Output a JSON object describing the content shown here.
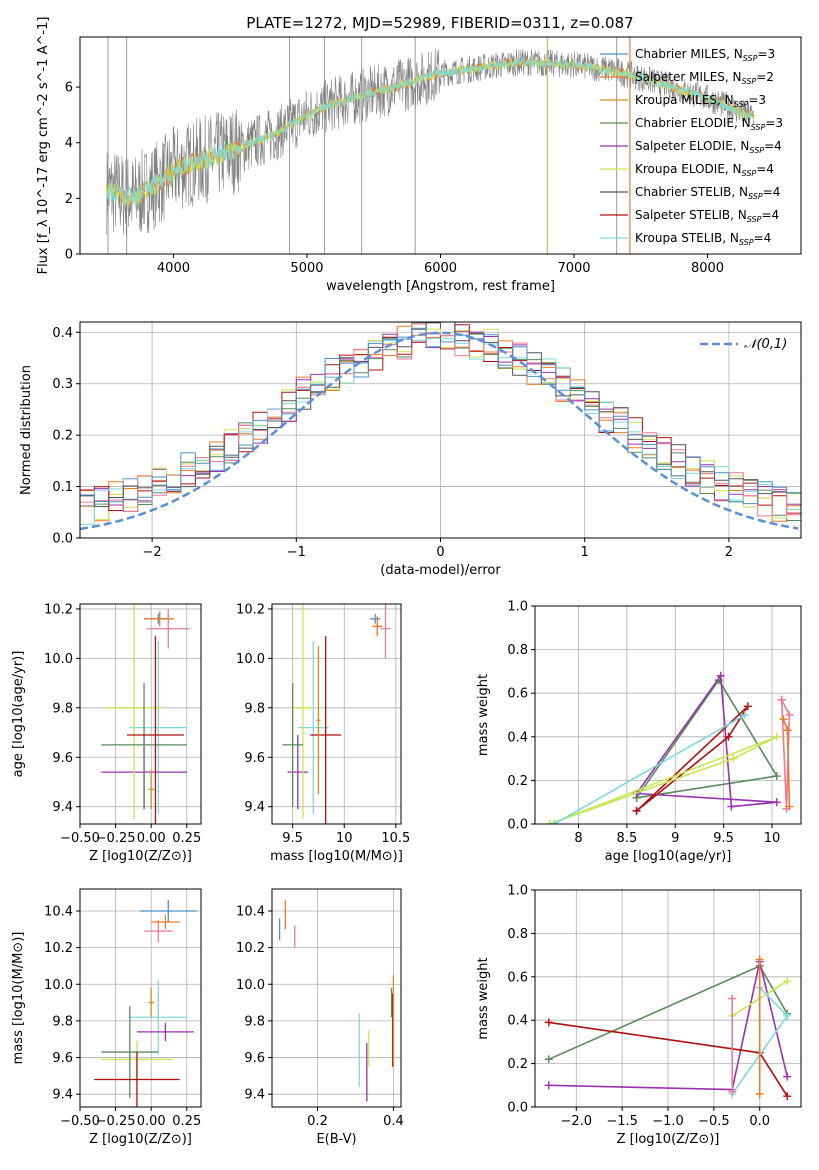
{
  "figure": {
    "title": "PLATE=1272, MJD=52989, FIBERID=0311, z=0.087"
  },
  "colors": {
    "series": [
      "#4a90c8",
      "#f07820",
      "#d98c1a",
      "#5a8a5a",
      "#9b30b0",
      "#c8e650",
      "#555555",
      "#b01010",
      "#80d8e0"
    ],
    "pink": "#f07898",
    "obs": "#808080",
    "normal": "#5b8fd9"
  },
  "legend_spectrum": [
    "Chabrier MILES, N_SSP=3",
    "Salpeter MILES, N_SSP=2",
    "Kroupa MILES, N_SSP=3",
    "Chabrier ELODIE, N_SSP=3",
    "Salpeter ELODIE, N_SSP=4",
    "Kroupa ELODIE, N_SSP=4",
    "Chabrier STELIB, N_SSP=4",
    "Salpeter STELIB, N_SSP=4",
    "Kroupa STELIB, N_SSP=4"
  ],
  "chart_data": [
    {
      "id": "spectrum",
      "type": "line",
      "title": "PLATE=1272, MJD=52989, FIBERID=0311, z=0.087",
      "xlabel": "wavelength [Angstrom, rest frame]",
      "ylabel": "Flux [f_λ 10^-17 erg cm^-2 s^-1 A^-1]",
      "xlim": [
        3300,
        8700
      ],
      "ylim": [
        0,
        7.8
      ],
      "xticks": [
        4000,
        5000,
        6000,
        7000,
        8000
      ],
      "yticks": [
        0,
        2,
        4,
        6
      ],
      "model_curve": {
        "x": [
          3500,
          3700,
          3900,
          4000,
          4100,
          4300,
          4500,
          4800,
          5000,
          5200,
          5500,
          5800,
          6000,
          6300,
          6600,
          7000,
          7300,
          7600,
          8000,
          8300
        ],
        "y": [
          2.3,
          2.0,
          2.6,
          3.0,
          3.2,
          3.5,
          3.8,
          4.4,
          5.0,
          5.4,
          5.8,
          6.2,
          6.5,
          6.7,
          6.9,
          6.8,
          6.6,
          6.2,
          5.6,
          5.0
        ]
      }
    },
    {
      "id": "residuals",
      "type": "line",
      "xlabel": "(data-model)/error",
      "ylabel": "Normed distribution",
      "xlim": [
        -2.5,
        2.5
      ],
      "ylim": [
        0,
        0.42
      ],
      "xticks": [
        -2,
        -1,
        0,
        1,
        2
      ],
      "yticks": [
        0.0,
        0.1,
        0.2,
        0.3,
        0.4
      ],
      "legend": "𝒩(0,1)",
      "series": [
        {
          "name": "Normal",
          "mean": 0,
          "sigma": 1
        }
      ]
    },
    {
      "id": "age-Z",
      "type": "scatter",
      "xlabel": "Z [log10(Z/Z⊙)]",
      "ylabel": "age  [log10(age/yr)]",
      "xlim": [
        -0.5,
        0.35
      ],
      "ylim": [
        9.33,
        10.22
      ],
      "xticks": [
        -0.5,
        -0.25,
        0.0,
        0.25
      ],
      "xticklabels": [
        "−0.50",
        "−0.25",
        "0.00",
        "0.25"
      ],
      "yticks": [
        9.4,
        9.6,
        9.8,
        10.0,
        10.2
      ],
      "points": [
        {
          "x": 0.05,
          "y": 10.16,
          "xerr": 0.1,
          "yerr": 0.02
        },
        {
          "x": 0.06,
          "y": 10.16,
          "xerr": 0.1,
          "yerr": 0.03
        },
        {
          "x": 0.12,
          "y": 10.12,
          "xerr": 0.15,
          "yerr": 0.08
        },
        {
          "x": 0.05,
          "y": 9.72,
          "xerr": 0.2,
          "yerr": 0.35
        },
        {
          "x": -0.05,
          "y": 9.54,
          "xerr": 0.3,
          "yerr": 0.15
        },
        {
          "x": -0.12,
          "y": 9.8,
          "xerr": 0.2,
          "yerr": 0.45
        },
        {
          "x": -0.05,
          "y": 9.65,
          "xerr": 0.3,
          "yerr": 0.25
        },
        {
          "x": 0.03,
          "y": 9.69,
          "xerr": 0.2,
          "yerr": 0.4
        },
        {
          "x": 0.0,
          "y": 9.47,
          "xerr": 0.02,
          "yerr": 0.08
        }
      ]
    },
    {
      "id": "age-mass",
      "type": "scatter",
      "xlabel": "mass [log10(M/M⊙)]",
      "ylabel": "",
      "xlim": [
        9.3,
        10.55
      ],
      "ylim": [
        9.33,
        10.22
      ],
      "xticks": [
        9.5,
        10.0,
        10.5
      ],
      "yticks": [
        9.4,
        9.6,
        9.8,
        10.0,
        10.2
      ],
      "points": [
        {
          "x": 10.3,
          "y": 10.16,
          "xerr": 0.05,
          "yerr": 0.02
        },
        {
          "x": 10.32,
          "y": 10.13,
          "xerr": 0.05,
          "yerr": 0.04
        },
        {
          "x": 10.4,
          "y": 10.12,
          "xerr": 0.05,
          "yerr": 0.12
        },
        {
          "x": 9.7,
          "y": 9.72,
          "xerr": 0.15,
          "yerr": 0.35
        },
        {
          "x": 9.55,
          "y": 9.54,
          "xerr": 0.1,
          "yerr": 0.15
        },
        {
          "x": 9.6,
          "y": 9.8,
          "xerr": 0.1,
          "yerr": 0.45
        },
        {
          "x": 9.5,
          "y": 9.65,
          "xerr": 0.1,
          "yerr": 0.25
        },
        {
          "x": 9.82,
          "y": 9.69,
          "xerr": 0.15,
          "yerr": 0.4
        },
        {
          "x": 9.75,
          "y": 9.75,
          "xerr": 0.02,
          "yerr": 0.3
        }
      ]
    },
    {
      "id": "weight-age",
      "type": "line",
      "xlabel": "age  [log10(age/yr)]",
      "ylabel": "mass weight",
      "xlim": [
        7.55,
        10.3
      ],
      "ylim": [
        0,
        1.0
      ],
      "xticks": [
        8.0,
        8.5,
        9.0,
        9.5,
        10.0
      ],
      "yticks": [
        0.0,
        0.2,
        0.4,
        0.6,
        0.8,
        1.0
      ],
      "series": [
        {
          "x": [
            8.6,
            9.45,
            10.05,
            8.6
          ],
          "y": [
            0.12,
            0.66,
            0.22,
            0.12
          ]
        },
        {
          "x": [
            8.6,
            9.47,
            9.58,
            10.05,
            8.6
          ],
          "y": [
            0.14,
            0.68,
            0.08,
            0.1,
            0.14
          ]
        },
        {
          "x": [
            8.6,
            9.55,
            9.75,
            8.6
          ],
          "y": [
            0.06,
            0.4,
            0.54,
            0.06
          ]
        },
        {
          "x": [
            7.7,
            9.6,
            10.05,
            7.7
          ],
          "y": [
            0.0,
            0.3,
            0.4,
            0.0
          ]
        },
        {
          "x": [
            7.75,
            9.72,
            7.75
          ],
          "y": [
            0.0,
            0.5,
            0.0
          ]
        },
        {
          "x": [
            10.1,
            10.15,
            10.18,
            10.1
          ],
          "y": [
            0.57,
            0.07,
            0.5,
            0.57
          ]
        },
        {
          "x": [
            10.12,
            10.16,
            10.18
          ],
          "y": [
            0.48,
            0.43,
            0.08
          ]
        }
      ]
    },
    {
      "id": "mass-Z",
      "type": "scatter",
      "xlabel": "Z [log10(Z/Z⊙)]",
      "ylabel": "mass [log10(M/M⊙)]",
      "xlim": [
        -0.5,
        0.35
      ],
      "ylim": [
        9.33,
        10.52
      ],
      "xticks": [
        -0.5,
        -0.25,
        0.0,
        0.25
      ],
      "xticklabels": [
        "−0.50",
        "−0.25",
        "0.00",
        "0.25"
      ],
      "yticks": [
        9.4,
        9.6,
        9.8,
        10.0,
        10.2,
        10.4
      ],
      "points": [
        {
          "x": 0.12,
          "y": 10.4,
          "xerr": 0.2,
          "yerr": 0.06
        },
        {
          "x": 0.1,
          "y": 10.34,
          "xerr": 0.1,
          "yerr": 0.04
        },
        {
          "x": 0.05,
          "y": 10.29,
          "xerr": 0.1,
          "yerr": 0.06
        },
        {
          "x": 0.05,
          "y": 9.82,
          "xerr": 0.2,
          "yerr": 0.2
        },
        {
          "x": 0.1,
          "y": 9.74,
          "xerr": 0.2,
          "yerr": 0.05
        },
        {
          "x": -0.1,
          "y": 9.59,
          "xerr": 0.25,
          "yerr": 0.1
        },
        {
          "x": -0.15,
          "y": 9.63,
          "xerr": 0.2,
          "yerr": 0.25
        },
        {
          "x": -0.1,
          "y": 9.48,
          "xerr": 0.3,
          "yerr": 0.15
        },
        {
          "x": 0.0,
          "y": 9.9,
          "xerr": 0.02,
          "yerr": 0.08
        }
      ]
    },
    {
      "id": "mass-EBV",
      "type": "scatter",
      "xlabel": "E(B-V)",
      "ylabel": "",
      "xlim": [
        0.08,
        0.42
      ],
      "ylim": [
        9.33,
        10.52
      ],
      "xticks": [
        0.2,
        0.4
      ],
      "yticks": [
        9.4,
        9.6,
        9.8,
        10.0,
        10.2,
        10.4
      ],
      "points": [
        {
          "x": 0.1,
          "y": 10.3,
          "yerr": 0.06
        },
        {
          "x": 0.115,
          "y": 10.38,
          "yerr": 0.08
        },
        {
          "x": 0.14,
          "y": 10.26,
          "yerr": 0.06
        },
        {
          "x": 0.31,
          "y": 9.64,
          "yerr": 0.2
        },
        {
          "x": 0.33,
          "y": 9.52,
          "yerr": 0.16
        },
        {
          "x": 0.335,
          "y": 9.65,
          "yerr": 0.1
        },
        {
          "x": 0.395,
          "y": 9.9,
          "yerr": 0.08
        },
        {
          "x": 0.398,
          "y": 9.75,
          "yerr": 0.2
        },
        {
          "x": 0.4,
          "y": 9.8,
          "yerr": 0.25
        }
      ]
    },
    {
      "id": "weight-Z",
      "type": "line",
      "xlabel": "Z [log10(Z/Z⊙)]",
      "ylabel": "mass weight",
      "xlim": [
        -2.45,
        0.45
      ],
      "ylim": [
        0,
        1.0
      ],
      "xticks": [
        -2.0,
        -1.5,
        -1.0,
        -0.5,
        0.0
      ],
      "xticklabels": [
        "−2.0",
        "−1.5",
        "−1.0",
        "−0.5",
        "0.0"
      ],
      "yticks": [
        0.0,
        0.2,
        0.4,
        0.6,
        0.8,
        1.0
      ],
      "series": [
        {
          "x": [
            -2.3,
            0.0,
            0.3
          ],
          "y": [
            0.22,
            0.65,
            0.43
          ]
        },
        {
          "x": [
            -2.3,
            -0.3,
            0.0,
            0.3
          ],
          "y": [
            0.1,
            0.08,
            0.67,
            0.14
          ]
        },
        {
          "x": [
            -2.3,
            0.0,
            0.3
          ],
          "y": [
            0.39,
            0.25,
            0.05
          ]
        },
        {
          "x": [
            -0.3,
            0.3
          ],
          "y": [
            0.42,
            0.58
          ]
        },
        {
          "x": [
            -0.3,
            0.3,
            0.0
          ],
          "y": [
            0.06,
            0.42,
            0.55
          ]
        },
        {
          "x": [
            -0.3,
            -0.3
          ],
          "y": [
            0.5,
            0.07
          ]
        },
        {
          "x": [
            0.0,
            0.0
          ],
          "y": [
            0.68,
            0.06
          ]
        }
      ]
    }
  ]
}
